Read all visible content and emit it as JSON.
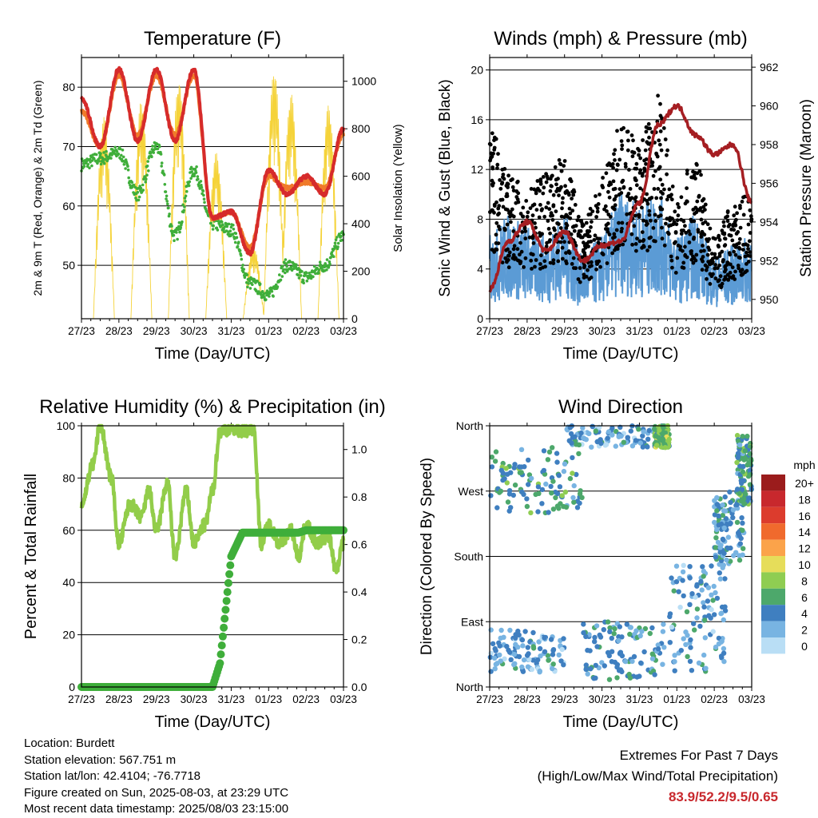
{
  "x_ticks": [
    "27/23",
    "28/23",
    "29/23",
    "30/23",
    "31/23",
    "01/23",
    "02/23",
    "03/23"
  ],
  "x_label": "Time (Day/UTC)",
  "panels": {
    "temperature": {
      "title": "Temperature (F)",
      "left_label": "2m & 9m T (Red, Orange) & 2m Td (Green)",
      "right_label": "Solar Insolation (Yellow)",
      "left_ticks": [
        "50",
        "60",
        "70",
        "80"
      ],
      "right_ticks": [
        "0",
        "200",
        "400",
        "600",
        "800",
        "1000"
      ]
    },
    "winds": {
      "title": "Winds (mph) & Pressure (mb)",
      "left_label": "Sonic Wind & Gust (Blue, Black)",
      "right_label": "Station Pressure (Maroon)",
      "left_ticks": [
        "0",
        "4",
        "8",
        "12",
        "16",
        "20"
      ],
      "right_ticks": [
        "950",
        "952",
        "954",
        "956",
        "958",
        "960",
        "962"
      ]
    },
    "humidity": {
      "title": "Relative Humidity (%) & Precipitation (in)",
      "left_label": "Percent & Total Rainfall",
      "left_ticks": [
        "0",
        "20",
        "40",
        "60",
        "80",
        "100"
      ],
      "right_ticks": [
        "0.0",
        "0.2",
        "0.4",
        "0.6",
        "0.8",
        "1.0"
      ]
    },
    "direction": {
      "title": "Wind Direction",
      "left_label": "Direction (Colored By Speed)",
      "left_ticks": [
        "North",
        "East",
        "South",
        "West",
        "North"
      ],
      "legend_title": "mph",
      "legend_labels": [
        "20+",
        "18",
        "16",
        "14",
        "12",
        "10",
        "8",
        "6",
        "4",
        "2",
        "0"
      ],
      "legend_colors": [
        "#9b1c1c",
        "#c8282d",
        "#dc3c2d",
        "#f06a2d",
        "#fba34a",
        "#e6dd5a",
        "#8fcd52",
        "#4da86b",
        "#3f7fc0",
        "#78b4e2",
        "#b9def5"
      ]
    }
  },
  "chart_data": [
    {
      "type": "line",
      "title": "Temperature (F)",
      "xlabel": "Time (Day/UTC)",
      "ylabel": "2m & 9m T (Red, Orange) & 2m Td (Green)",
      "y2label": "Solar Insolation (Yellow)",
      "x_days": [
        0,
        0.5,
        1,
        1.5,
        2,
        2.5,
        3,
        3.5,
        4,
        4.5,
        5,
        5.5,
        6,
        6.5,
        7
      ],
      "ylim": [
        41,
        85
      ],
      "y2lim": [
        0,
        1100
      ],
      "series": [
        {
          "name": "2m T",
          "color": "#d62b2b",
          "values": [
            78,
            70,
            83,
            71,
            83,
            71,
            83,
            58,
            59,
            52,
            66,
            62,
            65,
            62,
            73
          ]
        },
        {
          "name": "9m T",
          "color": "#f07a2a",
          "values": [
            76,
            70,
            82,
            72,
            82,
            72,
            82,
            58,
            59,
            53,
            65,
            63,
            64,
            63,
            72
          ]
        },
        {
          "name": "2m Td",
          "color": "#3fae3a",
          "values": [
            67,
            68,
            69,
            62,
            70,
            55,
            66,
            57,
            56,
            47,
            45,
            50,
            48,
            50,
            55
          ]
        },
        {
          "name": "Solar Insolation",
          "color": "#f5d33a",
          "axis": "y2",
          "peaks": [
            [
              0.6,
              850
            ],
            [
              1.6,
              920
            ],
            [
              2.6,
              1000
            ],
            [
              3.6,
              700
            ],
            [
              4.6,
              300
            ],
            [
              5.15,
              1050
            ],
            [
              5.6,
              950
            ],
            [
              6.6,
              900
            ]
          ]
        }
      ]
    },
    {
      "type": "line",
      "title": "Winds (mph) & Pressure (mb)",
      "xlabel": "Time (Day/UTC)",
      "ylabel": "Sonic Wind & Gust (Blue, Black)",
      "y2label": "Station Pressure (Maroon)",
      "x_days": [
        0,
        0.5,
        1,
        1.5,
        2,
        2.5,
        3,
        3.5,
        4,
        4.5,
        5,
        5.5,
        6,
        6.5,
        7
      ],
      "ylim": [
        0,
        21
      ],
      "y2lim": [
        949,
        962.5
      ],
      "series": [
        {
          "name": "Sonic Wind",
          "color": "#5b9bd5",
          "values": [
            4,
            5,
            4.5,
            4,
            5,
            3,
            4,
            6,
            5.5,
            6,
            4,
            5,
            3,
            3.5,
            4
          ]
        },
        {
          "name": "Gust",
          "color": "#000000",
          "values": [
            12,
            9,
            8,
            9,
            10,
            6,
            9,
            12,
            11,
            14,
            8,
            10,
            5,
            7,
            8
          ]
        },
        {
          "name": "Station Pressure",
          "color": "#a51e22",
          "values": [
            950.5,
            953,
            954,
            952.5,
            953.5,
            952,
            952.8,
            953,
            955,
            959,
            960,
            958.5,
            957.5,
            958,
            955
          ]
        }
      ]
    },
    {
      "type": "line",
      "title": "Relative Humidity (%) & Precipitation (in)",
      "xlabel": "Time (Day/UTC)",
      "ylabel": "Percent & Total Rainfall",
      "ylim": [
        0,
        100
      ],
      "y2lim": [
        0,
        1.1
      ],
      "x_days": [
        0,
        0.3,
        0.5,
        0.8,
        1.0,
        1.3,
        1.6,
        1.8,
        2.0,
        2.3,
        2.5,
        2.8,
        3.0,
        3.3,
        3.5,
        3.7,
        4.0,
        4.3,
        4.6,
        4.8,
        5.0,
        5.3,
        5.6,
        5.8,
        6.0,
        6.3,
        6.6,
        6.8,
        7.0
      ],
      "series": [
        {
          "name": "Relative Humidity",
          "color": "#92cd4a",
          "values": [
            70,
            85,
            100,
            80,
            55,
            70,
            65,
            75,
            60,
            78,
            50,
            75,
            55,
            62,
            75,
            98,
            99,
            98,
            99,
            55,
            62,
            55,
            60,
            50,
            62,
            55,
            58,
            45,
            55
          ]
        },
        {
          "name": "Total Precipitation",
          "color": "#3fae3a",
          "axis": "y2",
          "values": [
            0,
            0,
            0,
            0,
            0,
            0,
            0,
            0,
            0,
            0,
            0,
            0,
            0,
            0,
            0,
            0.1,
            0.55,
            0.65,
            0.65,
            0.65,
            0.65,
            0.65,
            0.65,
            0.65,
            0.66,
            0.66,
            0.66,
            0.66,
            0.66
          ]
        }
      ]
    },
    {
      "type": "scatter",
      "title": "Wind Direction",
      "xlabel": "Time (Day/UTC)",
      "ylabel": "Direction (Colored By Speed)",
      "y_categories": [
        "North",
        "East",
        "South",
        "West",
        "North"
      ],
      "ylim": [
        0,
        360
      ],
      "colorbar": {
        "title": "mph",
        "range": [
          0,
          20
        ]
      },
      "clusters": [
        {
          "x_range": [
            0,
            2.5
          ],
          "deg_range": [
            240,
            330
          ],
          "speed": 5
        },
        {
          "x_range": [
            0,
            2.0
          ],
          "deg_range": [
            20,
            80
          ],
          "speed": 3
        },
        {
          "x_range": [
            2.0,
            4.7
          ],
          "deg_range": [
            330,
            360
          ],
          "speed": 3
        },
        {
          "x_range": [
            2.5,
            4.7
          ],
          "deg_range": [
            10,
            90
          ],
          "speed": 4
        },
        {
          "x_range": [
            4.4,
            4.8
          ],
          "deg_range": [
            330,
            360
          ],
          "speed": 7
        },
        {
          "x_range": [
            4.8,
            6.3
          ],
          "deg_range": [
            20,
            170
          ],
          "speed": 3
        },
        {
          "x_range": [
            6.0,
            6.8
          ],
          "deg_range": [
            170,
            270
          ],
          "speed": 4
        },
        {
          "x_range": [
            6.6,
            7.0
          ],
          "deg_range": [
            250,
            350
          ],
          "speed": 5
        }
      ]
    }
  ],
  "info": {
    "location": "Location: Burdett",
    "elevation": "Station elevation: 567.751 m",
    "latlon": "Station lat/lon: 42.4104; -76.7718",
    "created": "Figure created on Sun, 2025-08-03, at 23:29 UTC",
    "recent": "Most recent data timestamp: 2025/08/03 23:15:00"
  },
  "extremes": {
    "title": "Extremes For Past 7 Days",
    "subtitle": "(High/Low/Max Wind/Total Precipitation)",
    "values": "83.9/52.2/9.5/0.65"
  }
}
